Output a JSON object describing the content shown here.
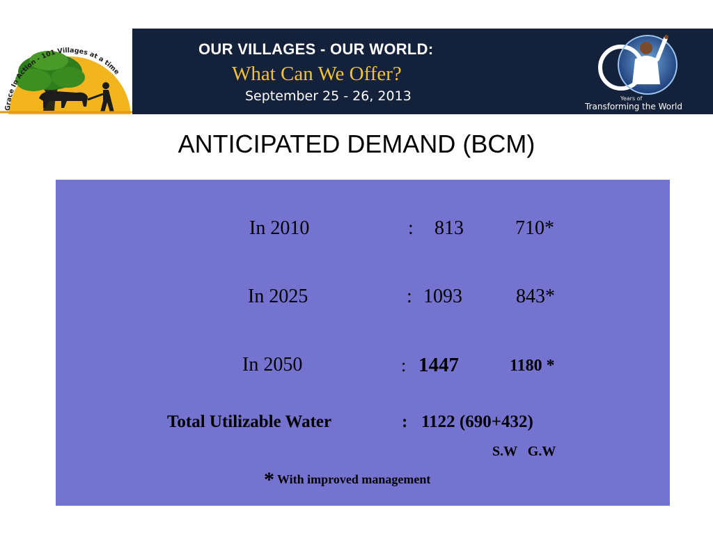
{
  "banner": {
    "ring_text": "Grace In Action - 101 Villages at a time",
    "title": "OUR VILLAGES - OUR WORLD:",
    "subtitle": "What Can We Offer?",
    "date": "September 25 - 26, 2013",
    "years_of": "Years of",
    "tagline": "Transforming the World"
  },
  "page_title": "ANTICIPATED DEMAND (BCM)",
  "demand_rows": [
    {
      "label": "In 2010",
      "colon": ":",
      "value": "813",
      "improved": "710*"
    },
    {
      "label": "In 2025",
      "colon": ":",
      "value": "1093",
      "improved": "843*"
    },
    {
      "label": "In 2050",
      "colon": ":",
      "value": "1447",
      "improved": "1180 *"
    }
  ],
  "total": {
    "label": "Total Utilizable Water",
    "colon": ":",
    "value": "1122 (690+432)",
    "breakdown": "S.W   G.W"
  },
  "footnote": {
    "star": "*",
    "text": "With improved management"
  },
  "colors": {
    "banner_bg": "#14213a",
    "banner_subtitle": "#f2c230",
    "logo_sun": "#f3b51e",
    "box_bg": "#7473d0"
  }
}
